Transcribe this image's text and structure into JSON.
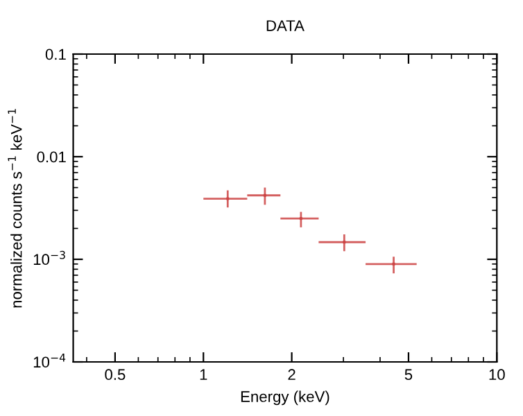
{
  "chart_data": {
    "type": "scatter",
    "title": "DATA",
    "xlabel": "Energy (keV)",
    "ylabel": "normalized counts s$^{−1}$ keV$^{−1}$",
    "log": "xy",
    "grid": false,
    "legend": false,
    "xlim": [
      0.36,
      10
    ],
    "xticks": [
      0.5,
      1,
      2,
      5,
      10
    ],
    "ylim": [
      0.0001,
      0.1
    ],
    "yticks": [
      {
        "value": 0.0001,
        "label": "10$^{−4}$"
      },
      {
        "value": 0.001,
        "label": "10$^{−3}$"
      },
      0.01,
      0.1
    ],
    "series": [
      {
        "color": "#cc4444",
        "x": [
          1.21,
          1.62,
          2.15,
          3.02,
          4.45
        ],
        "values": [
          0.0039,
          0.0042,
          0.0025,
          0.00147,
          0.0009
        ],
        "xerrors": [
          [
            1.0,
            1.41
          ],
          [
            1.41,
            1.83
          ],
          [
            1.83,
            2.47
          ],
          [
            2.47,
            3.57
          ],
          [
            3.57,
            5.33
          ]
        ],
        "errors": [
          [
            0.0032,
            0.0047
          ],
          [
            0.0034,
            0.005
          ],
          [
            0.00205,
            0.0029
          ],
          [
            0.0012,
            0.00175
          ],
          [
            0.00073,
            0.00106
          ]
        ]
      }
    ]
  }
}
